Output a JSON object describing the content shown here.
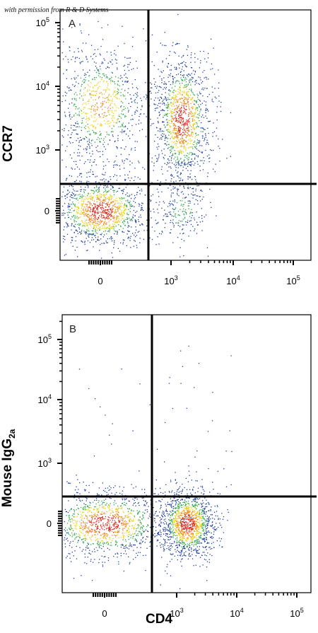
{
  "watermark": "with permission from R & D Systems",
  "colors": {
    "low": "#1f3d9e",
    "mid": "#2fa84a",
    "high": "#e8d21a",
    "peak": "#d62a1a",
    "gate": "#000000"
  },
  "chart_data": [
    {
      "type": "scatter",
      "panel": "A",
      "xlabel": "",
      "ylabel": "CCR7",
      "x_ticks": [
        "0",
        "10^3",
        "10^4",
        "10^5"
      ],
      "y_ticks": [
        "0",
        "10^3",
        "10^4",
        "10^5"
      ],
      "gates": {
        "x": 450,
        "y": 350
      },
      "populations": [
        {
          "x": 0,
          "y": 0,
          "spread_x": 0.35,
          "spread_y": 0.3,
          "density": "high"
        },
        {
          "x": 0,
          "y": 5000,
          "spread_x": 0.35,
          "spread_y": 0.55,
          "density": "medium"
        },
        {
          "x": 1500,
          "y": 3000,
          "spread_x": 0.2,
          "spread_y": 0.55,
          "density": "high"
        },
        {
          "x": 1500,
          "y": 0,
          "spread_x": 0.2,
          "spread_y": 0.3,
          "density": "low"
        }
      ]
    },
    {
      "type": "scatter",
      "panel": "B",
      "xlabel": "CD4",
      "ylabel": "Mouse IgG2a",
      "x_ticks": [
        "0",
        "10^3",
        "10^4",
        "10^5"
      ],
      "y_ticks": [
        "0",
        "10^3",
        "10^4",
        "10^5"
      ],
      "gates": {
        "x": 450,
        "y": 300
      },
      "populations": [
        {
          "x": 0,
          "y": 0,
          "spread_x": 0.45,
          "spread_y": 0.3,
          "density": "high"
        },
        {
          "x": 1500,
          "y": 0,
          "spread_x": 0.2,
          "spread_y": 0.3,
          "density": "high"
        }
      ]
    }
  ],
  "labels": {
    "panel_a": "A",
    "panel_b": "B",
    "ylabel_a": "CCR7",
    "ylabel_b_main": "Mouse IgG",
    "ylabel_b_sub": "2a",
    "xlabel": "CD4"
  }
}
